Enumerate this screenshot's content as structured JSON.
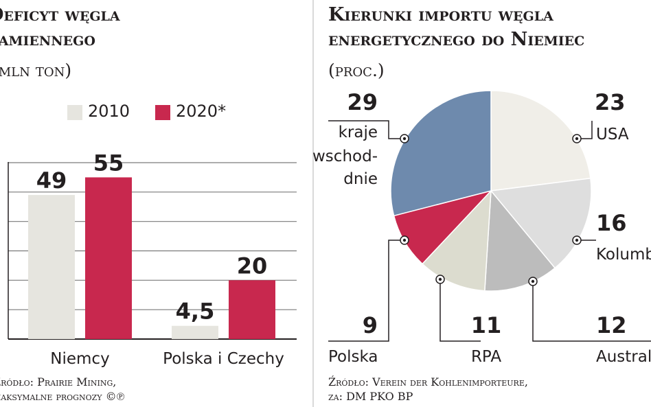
{
  "chart_data": [
    {
      "type": "bar",
      "title_lines": [
        "Deficyt węgla",
        "kamiennego"
      ],
      "unit": "(mln ton)",
      "categories": [
        "Niemcy",
        "Polska i Czechy"
      ],
      "series": [
        {
          "name": "2010",
          "values": [
            49,
            4.5
          ],
          "value_labels": [
            "49",
            "4,5"
          ],
          "color": "#e6e5df"
        },
        {
          "name": "2020*",
          "values": [
            55,
            20
          ],
          "value_labels": [
            "55",
            "20"
          ],
          "color": "#c8284e"
        }
      ],
      "ylim": [
        0,
        60
      ],
      "grid": true,
      "legend_position": "top",
      "source_lines": [
        "Źródło: Prairie Mining,",
        "maksymalne prognozy ©℗"
      ]
    },
    {
      "type": "pie",
      "title_lines": [
        "Kierunki importu węgla",
        "energetycznego do Niemiec"
      ],
      "unit": "(proc.)",
      "slices": [
        {
          "label": "USA",
          "value": 23,
          "value_label": "23",
          "color": "#f0eee8"
        },
        {
          "label": "Kolumbia",
          "value": 16,
          "value_label": "16",
          "color": "#dedede"
        },
        {
          "label": "Australia",
          "value": 12,
          "value_label": "12",
          "color": "#bcbcbc"
        },
        {
          "label": "RPA",
          "value": 11,
          "value_label": "11",
          "color": "#dcdccf"
        },
        {
          "label": "Polska",
          "value": 9,
          "value_label": "9",
          "color": "#c8284e"
        },
        {
          "label": "kraje wschodnie",
          "label_lines": [
            "kraje",
            "wschod-",
            "dnie"
          ],
          "value": 29,
          "value_label": "29",
          "color": "#6e8aad"
        }
      ],
      "source_lines": [
        "Źródło: Verein der Kohlenimporteure,",
        "za: DM PKO BP"
      ]
    }
  ]
}
